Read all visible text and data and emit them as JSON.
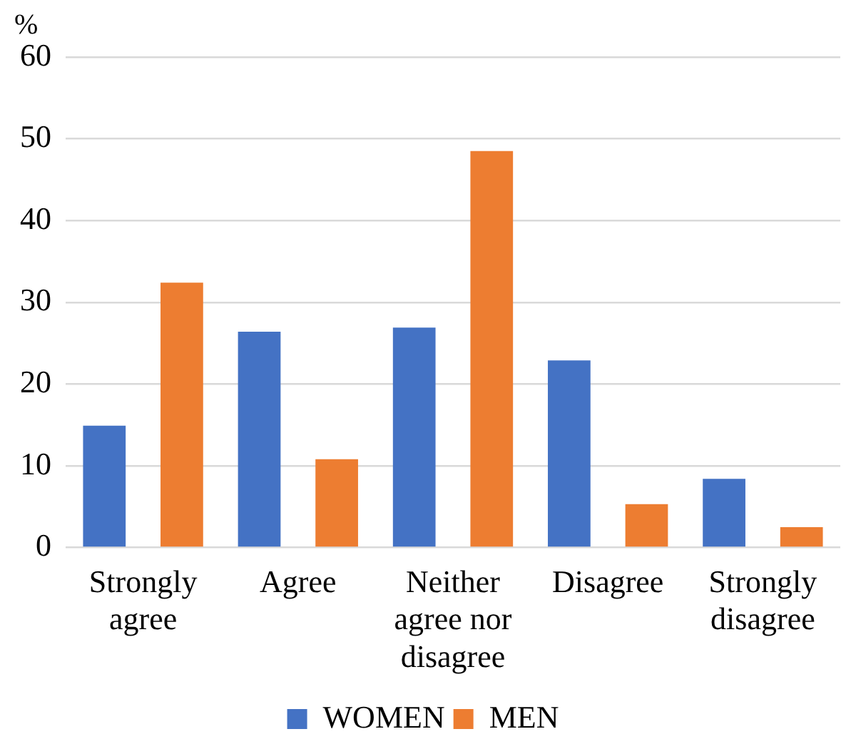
{
  "chart_data": {
    "type": "bar",
    "ylabel": "%",
    "categories": [
      "Strongly agree",
      "Agree",
      "Neither agree nor disagree",
      "Disagree",
      "Strongly disagree"
    ],
    "series": [
      {
        "name": "WOMEN",
        "color": "#4472c4",
        "values": [
          14.9,
          26.4,
          26.9,
          22.9,
          8.4
        ]
      },
      {
        "name": "MEN",
        "color": "#ed7d31",
        "values": [
          32.4,
          10.8,
          48.5,
          5.3,
          2.5
        ]
      }
    ],
    "ylim": [
      0,
      60
    ],
    "yticks": [
      0,
      10,
      20,
      30,
      40,
      50,
      60
    ],
    "grid": "y",
    "legend": "bottom"
  }
}
